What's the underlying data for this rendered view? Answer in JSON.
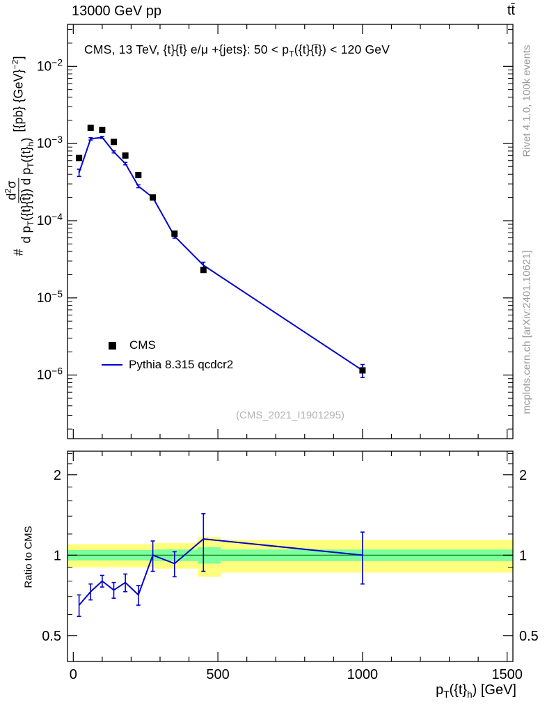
{
  "header": {
    "left": "13000 GeV pp",
    "right": "tt̄"
  },
  "annotation": "CMS, 13 TeV, {t}{t̄} e/μ +{jets}: 50 <  p_{T}({t}{t̄}) < 120 GeV",
  "ylabel": {
    "prefix": "#",
    "numerator": "d^{2}σ",
    "denominator": "d p_{T}({t}{t̄}) d p_{T}({t}_{h})",
    "units": "[{pb} {GeV}^{−2}]"
  },
  "xlabel": "p_{T}({t}_{h}) [GeV]",
  "ratio_ylabel": "Ratio to CMS",
  "legend": [
    {
      "label": "CMS",
      "marker": "square",
      "color": "#000000"
    },
    {
      "label": "Pythia 8.315 qcdcr2",
      "marker": "line",
      "color": "#0000cc"
    }
  ],
  "watermarks": {
    "right_top": "Rivet 4.1.0,  100k events",
    "right_bottom": "mcplots.cern.ch [arXiv:2401.10621]",
    "reference": "(CMS_2021_I1901295)"
  },
  "colors": {
    "mc_line": "#0000cc",
    "data_marker": "#000000",
    "band_yellow": "#ffff7d",
    "band_green": "#7dff9e",
    "unity_line": "#007700",
    "watermark_gray": "#999999"
  },
  "chart_data": [
    {
      "type": "line",
      "panel": "main",
      "xlim": [
        -20,
        1520
      ],
      "ylim_log": [
        1.5e-07,
        0.035
      ],
      "xticks": [
        0,
        500,
        1000,
        1500
      ],
      "ytick_exponents": [
        -6,
        -5,
        -4,
        -3,
        -2
      ],
      "x": [
        20,
        60,
        100,
        140,
        180,
        225,
        275,
        350,
        450,
        1000
      ],
      "series": [
        {
          "name": "CMS",
          "style": "scatter-square",
          "color": "#000000",
          "y": [
            0.00065,
            0.0016,
            0.0015,
            0.00105,
            0.0007,
            0.00039,
            0.0002,
            6.8e-05,
            2.3e-05,
            1.15e-06
          ]
        },
        {
          "name": "Pythia 8.315 qcdcr2",
          "style": "line",
          "color": "#0000cc",
          "y": [
            0.00042,
            0.00115,
            0.0012,
            0.00078,
            0.00055,
            0.00028,
            0.0002,
            6.3e-05,
            2.65e-05,
            1.15e-06
          ],
          "yerr": [
            4.5e-05,
            4e-05,
            3.5e-05,
            2.5e-05,
            2e-05,
            1.2e-05,
            9e-06,
            3.5e-06,
            2.5e-06,
            2.2e-07
          ]
        }
      ]
    },
    {
      "type": "ratio",
      "panel": "ratio",
      "ylim_log": [
        0.4,
        2.45
      ],
      "yticks": [
        0.5,
        1,
        2
      ],
      "x": [
        20,
        60,
        100,
        140,
        180,
        225,
        275,
        350,
        450,
        1000
      ],
      "ratio": [
        0.65,
        0.73,
        0.8,
        0.74,
        0.79,
        0.71,
        1.0,
        0.93,
        1.15,
        1.0
      ],
      "ratio_err": [
        0.06,
        0.05,
        0.04,
        0.05,
        0.06,
        0.06,
        0.13,
        0.1,
        0.28,
        0.22
      ],
      "bands": {
        "yellow": [
          [
            -20,
            280,
            0.9,
            1.1
          ],
          [
            280,
            430,
            0.89,
            1.11
          ],
          [
            430,
            510,
            0.83,
            1.17
          ],
          [
            510,
            1520,
            0.86,
            1.14
          ]
        ],
        "green": [
          [
            -20,
            280,
            0.955,
            1.045
          ],
          [
            280,
            430,
            0.95,
            1.05
          ],
          [
            430,
            510,
            0.93,
            1.07
          ],
          [
            510,
            1520,
            0.95,
            1.05
          ]
        ]
      }
    }
  ]
}
